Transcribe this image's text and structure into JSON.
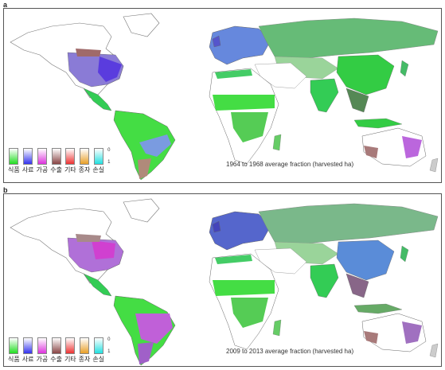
{
  "panels": [
    {
      "letter": "a",
      "caption": "1964 to 1968 average fraction (harvested ha)"
    },
    {
      "letter": "b",
      "caption": "2009 to 2013 average fraction (harvested ha)"
    }
  ],
  "legend": {
    "items": [
      {
        "label": "식품",
        "color": "#22dd22"
      },
      {
        "label": "사료",
        "color": "#3333ee"
      },
      {
        "label": "가공",
        "color": "#dd33dd"
      },
      {
        "label": "수출",
        "color": "#884444"
      },
      {
        "label": "기타",
        "color": "#ee3333"
      },
      {
        "label": "종자",
        "color": "#e8a028"
      },
      {
        "label": "손실",
        "color": "#22e0e0"
      }
    ],
    "scale_top": "0",
    "scale_bottom": "1"
  }
}
